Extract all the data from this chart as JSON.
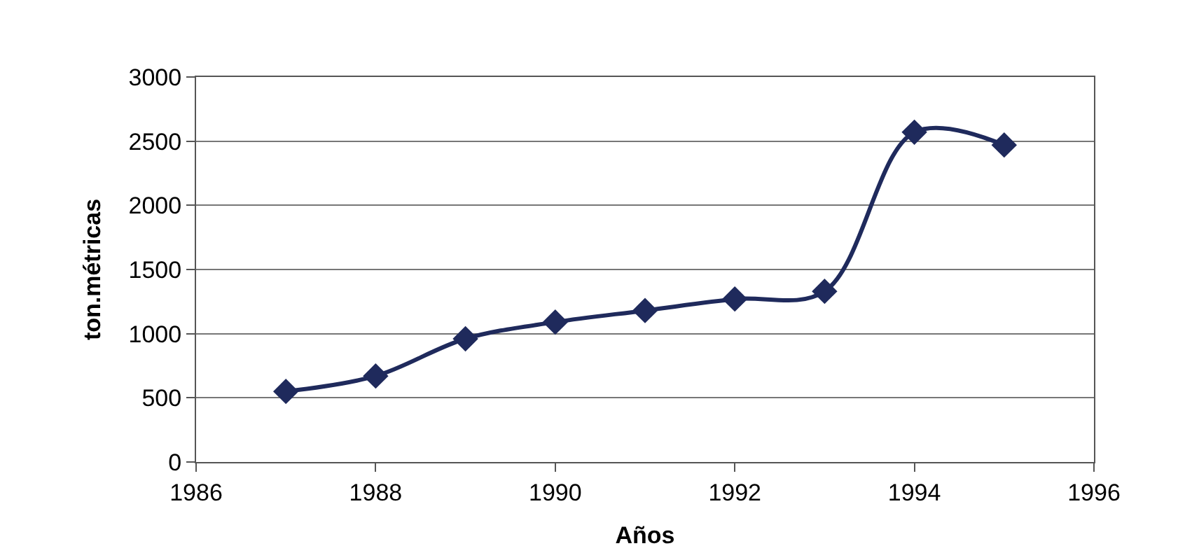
{
  "chart_data": {
    "type": "line",
    "xlabel": "Años",
    "ylabel": "ton.métricas",
    "x": [
      1987,
      1988,
      1989,
      1990,
      1991,
      1992,
      1993,
      1994,
      1995
    ],
    "series": [
      {
        "color": "#1f2a5c",
        "values": [
          550,
          670,
          960,
          1090,
          1180,
          1270,
          1330,
          2570,
          2470
        ]
      }
    ],
    "xlim": [
      1986,
      1996
    ],
    "xticks": [
      1986,
      1988,
      1990,
      1992,
      1994,
      1996
    ],
    "ylim": [
      0,
      3000
    ],
    "yticks": [
      0,
      500,
      1000,
      1500,
      2000,
      2500,
      3000
    ],
    "grid": "y",
    "marker": "diamond",
    "line_style": "solid",
    "legend": false
  }
}
